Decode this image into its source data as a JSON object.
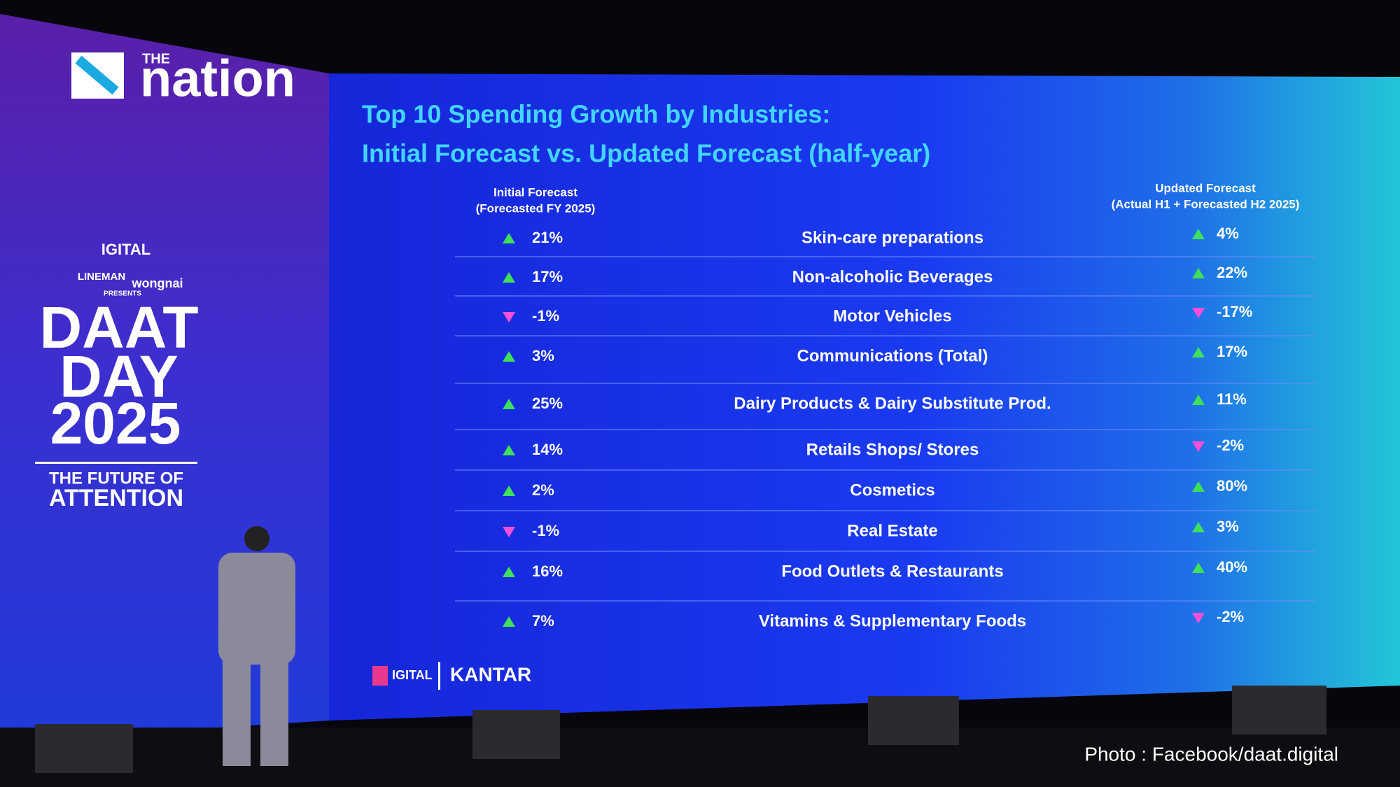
{
  "logo": {
    "small": "THE",
    "main": "nation"
  },
  "banner": {
    "brand": "IGITAL",
    "sponsors": [
      "LINEMAN",
      "wongnai"
    ],
    "presents": "PRESENTS",
    "event": [
      "DAAT",
      "DAY",
      "2025"
    ],
    "tagline": [
      "THE FUTURE OF",
      "ATTENTION"
    ]
  },
  "slide": {
    "title": [
      "Top 10 Spending Growth by Industries:",
      "Initial Forecast vs. Updated Forecast (half-year)"
    ],
    "columns": {
      "initial": [
        "Initial Forecast",
        "(Forecasted FY 2025)"
      ],
      "updated": [
        "Updated Forecast",
        "(Actual H1 + Forecasted H2 2025)"
      ]
    },
    "rows": [
      {
        "initial": "21%",
        "industry": "Skin-care preparations",
        "updated": "4%"
      },
      {
        "initial": "17%",
        "industry": "Non-alcoholic Beverages",
        "updated": "22%"
      },
      {
        "initial": "-1%",
        "industry": "Motor Vehicles",
        "updated": "-17%"
      },
      {
        "initial": "3%",
        "industry": "Communications (Total)",
        "updated": "17%"
      },
      {
        "initial": "25%",
        "industry": "Dairy Products & Dairy Substitute Prod.",
        "updated": "11%"
      },
      {
        "initial": "14%",
        "industry": "Retails Shops/ Stores",
        "updated": "-2%"
      },
      {
        "initial": "2%",
        "industry": "Cosmetics",
        "updated": "80%"
      },
      {
        "initial": "-1%",
        "industry": "Real Estate",
        "updated": "3%"
      },
      {
        "initial": "16%",
        "industry": "Food Outlets & Restaurants",
        "updated": "40%"
      },
      {
        "initial": "7%",
        "industry": "Vitamins & Supplementary Foods",
        "updated": "-2%"
      }
    ],
    "footer": {
      "brand": "IGITAL",
      "partner": "KANTAR"
    }
  },
  "credit": "Photo : Facebook/daat.digital"
}
